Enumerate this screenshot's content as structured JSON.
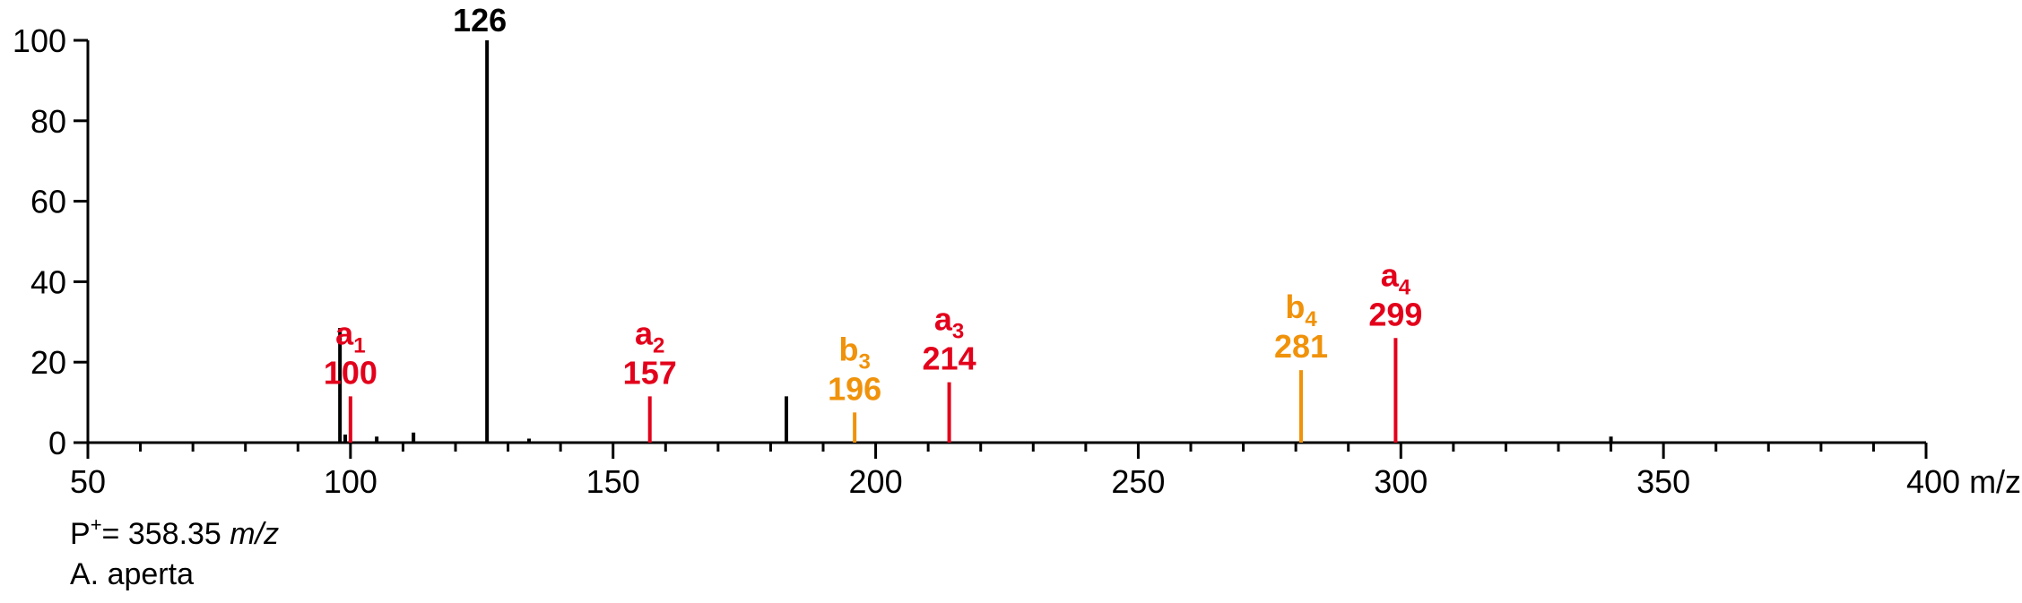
{
  "chart_data": {
    "type": "bar",
    "subtype": "mass-spectrum",
    "x_unit": "m/z",
    "xlim": [
      50,
      400
    ],
    "ylim": [
      0,
      100
    ],
    "x_ticks": [
      50,
      100,
      150,
      200,
      250,
      300,
      350,
      400
    ],
    "y_ticks": [
      0,
      20,
      40,
      60,
      80,
      100
    ],
    "x_minor_step": 10,
    "grid": false,
    "colors": {
      "unassigned": "#000000",
      "a_ion": "#e3001b",
      "b_ion": "#f0920a"
    },
    "peaks": [
      {
        "mz": 98,
        "intensity": 28.5,
        "series": "unassigned"
      },
      {
        "mz": 99,
        "intensity": 2,
        "series": "unassigned"
      },
      {
        "mz": 100,
        "intensity": 11.5,
        "series": "a",
        "label": "a",
        "sub": "1",
        "value_label": "100"
      },
      {
        "mz": 105,
        "intensity": 1.5,
        "series": "unassigned"
      },
      {
        "mz": 112,
        "intensity": 2.5,
        "series": "unassigned"
      },
      {
        "mz": 126,
        "intensity": 100,
        "series": "unassigned",
        "value_label": "126"
      },
      {
        "mz": 134,
        "intensity": 1,
        "series": "unassigned"
      },
      {
        "mz": 157,
        "intensity": 11.5,
        "series": "a",
        "label": "a",
        "sub": "2",
        "value_label": "157"
      },
      {
        "mz": 183,
        "intensity": 11.5,
        "series": "unassigned"
      },
      {
        "mz": 196,
        "intensity": 7.5,
        "series": "b",
        "label": "b",
        "sub": "3",
        "value_label": "196"
      },
      {
        "mz": 214,
        "intensity": 15,
        "series": "a",
        "label": "a",
        "sub": "3",
        "value_label": "214"
      },
      {
        "mz": 281,
        "intensity": 18,
        "series": "b",
        "label": "b",
        "sub": "4",
        "value_label": "281"
      },
      {
        "mz": 299,
        "intensity": 26,
        "series": "a",
        "label": "a",
        "sub": "4",
        "value_label": "299"
      },
      {
        "mz": 340,
        "intensity": 1.5,
        "series": "unassigned"
      }
    ],
    "x_axis_unit_label": "m/z"
  },
  "caption": {
    "precursor_prefix": "P",
    "precursor_sup": "+",
    "precursor_text": "= 358.35 ",
    "precursor_unit": "m/z",
    "species": "A. aperta"
  }
}
